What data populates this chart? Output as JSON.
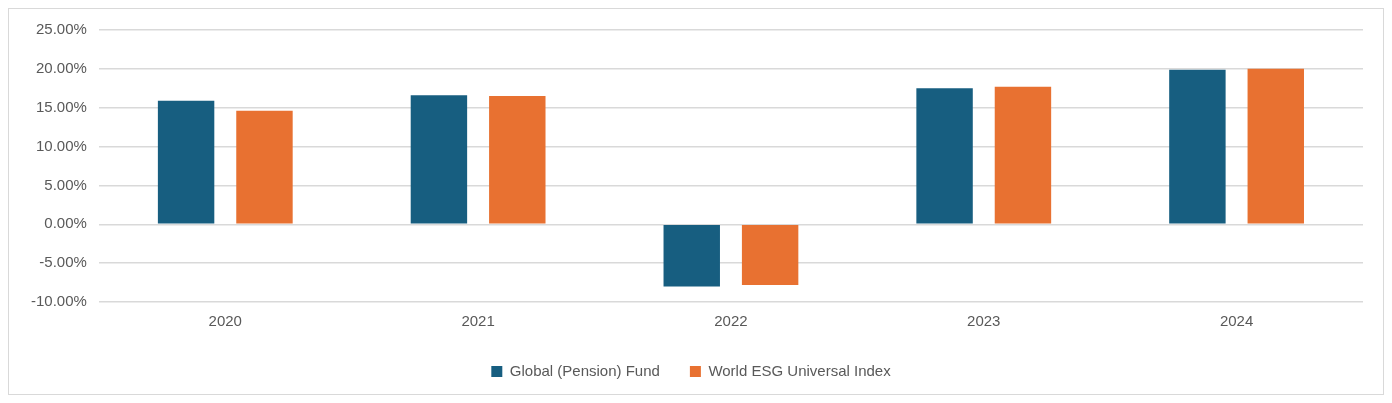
{
  "chart_data": {
    "type": "bar",
    "categories": [
      "2020",
      "2021",
      "2022",
      "2023",
      "2024"
    ],
    "series": [
      {
        "name": "Global (Pension) Fund",
        "color": "#175e80",
        "values": [
          15.9,
          16.6,
          -8.0,
          17.5,
          19.9
        ]
      },
      {
        "name": "World ESG Universal Index",
        "color": "#e87131",
        "values": [
          14.6,
          16.5,
          -7.8,
          17.7,
          20.0
        ]
      }
    ],
    "ylim": [
      -10,
      25
    ],
    "yticks": [
      {
        "value": -10,
        "label": "-10.00%"
      },
      {
        "value": -5,
        "label": "-5.00%"
      },
      {
        "value": 0,
        "label": "0.00%"
      },
      {
        "value": 5,
        "label": "5.00%"
      },
      {
        "value": 10,
        "label": "10.00%"
      },
      {
        "value": 15,
        "label": "15.00%"
      },
      {
        "value": 20,
        "label": "20.00%"
      },
      {
        "value": 25,
        "label": "25.00%"
      }
    ],
    "grid": "y",
    "legend": "bottom"
  }
}
